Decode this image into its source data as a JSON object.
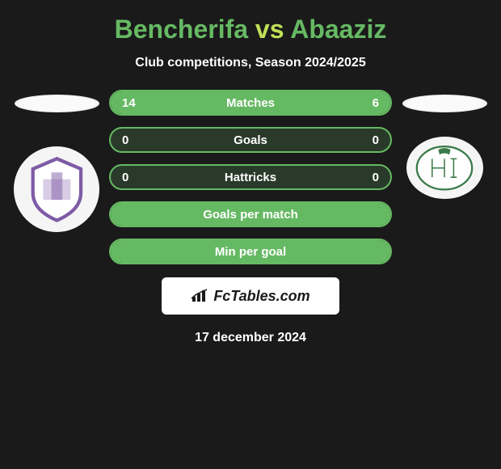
{
  "title": {
    "player1": "Bencherifa",
    "vs": "vs",
    "player2": "Abaaziz"
  },
  "subtitle": "Club competitions, Season 2024/2025",
  "stats": [
    {
      "label": "Matches",
      "left_val": "14",
      "right_val": "6",
      "left_pct": 70,
      "right_pct": 30,
      "layout": "split"
    },
    {
      "label": "Goals",
      "left_val": "0",
      "right_val": "0",
      "left_pct": 0,
      "right_pct": 0,
      "layout": "empty"
    },
    {
      "label": "Hattricks",
      "left_val": "0",
      "right_val": "0",
      "left_pct": 0,
      "right_pct": 0,
      "layout": "empty"
    },
    {
      "label": "Goals per match",
      "left_val": "",
      "right_val": "",
      "layout": "full"
    },
    {
      "label": "Min per goal",
      "left_val": "",
      "right_val": "",
      "layout": "full"
    }
  ],
  "brand": "FcTables.com",
  "date": "17 december 2024",
  "colors": {
    "bar_fill": "#66b963",
    "bar_border": "#66b963",
    "bar_bg": "#2a3a2a",
    "background": "#1a1a1a",
    "title_accent": "#bfe058",
    "title_main": "#66b963",
    "text": "#ffffff",
    "badge_left_accent": "#7e5ba6",
    "badge_right_accent": "#3a7a4a"
  }
}
